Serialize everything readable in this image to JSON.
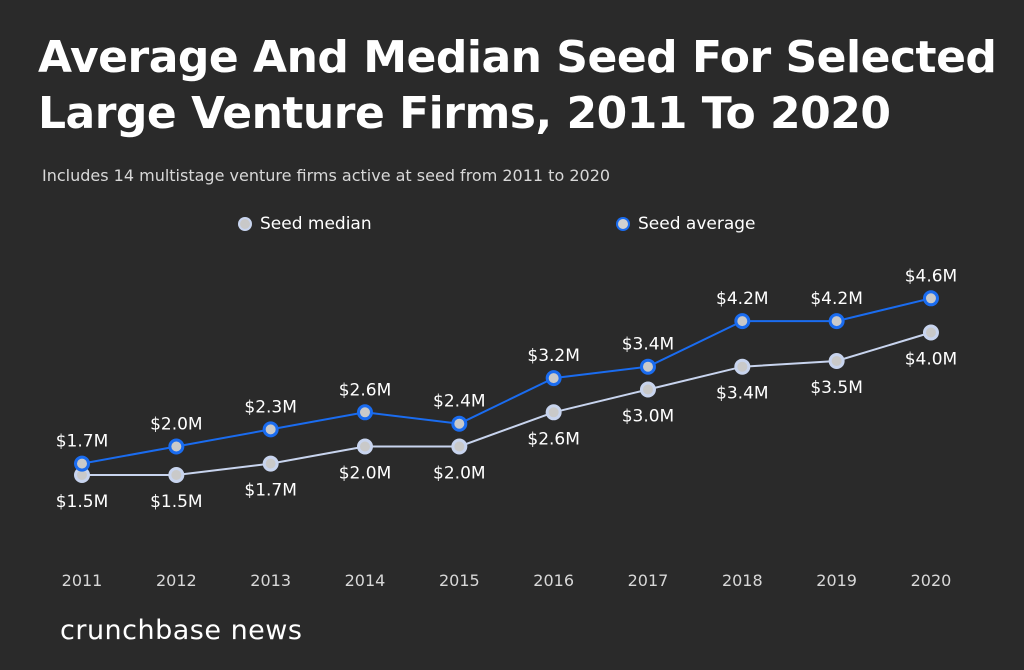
{
  "chart_data": {
    "type": "line",
    "title": "Average And Median Seed For Selected Large Venture Firms, 2011 To 2020",
    "subtitle": "Includes 14 multistage venture firms active at seed from 2011 to 2020",
    "categories": [
      "2011",
      "2012",
      "2013",
      "2014",
      "2015",
      "2016",
      "2017",
      "2018",
      "2019",
      "2020"
    ],
    "series": [
      {
        "name": "Seed median",
        "color": "#c8d4ee",
        "values": [
          1.5,
          1.5,
          1.7,
          2.0,
          2.0,
          2.6,
          3.0,
          3.4,
          3.5,
          4.0
        ],
        "labels": [
          "$1.5M",
          "$1.5M",
          "$1.7M",
          "$2.0M",
          "$2.0M",
          "$2.6M",
          "$3.0M",
          "$3.4M",
          "$3.5M",
          "$4.0M"
        ]
      },
      {
        "name": "Seed average",
        "color": "#1a6cf0",
        "values": [
          1.7,
          2.0,
          2.3,
          2.6,
          2.4,
          3.2,
          3.4,
          4.2,
          4.2,
          4.6
        ],
        "labels": [
          "$1.7M",
          "$2.0M",
          "$2.3M",
          "$2.6M",
          "$2.4M",
          "$3.2M",
          "$3.4M",
          "$4.2M",
          "$4.2M",
          "$4.6M"
        ]
      }
    ],
    "yunit": "$M",
    "grid": false,
    "legend": "top-center"
  },
  "brand": "crunchbase news",
  "colors": {
    "background": "#2a2a2a",
    "text": "#ffffff"
  }
}
